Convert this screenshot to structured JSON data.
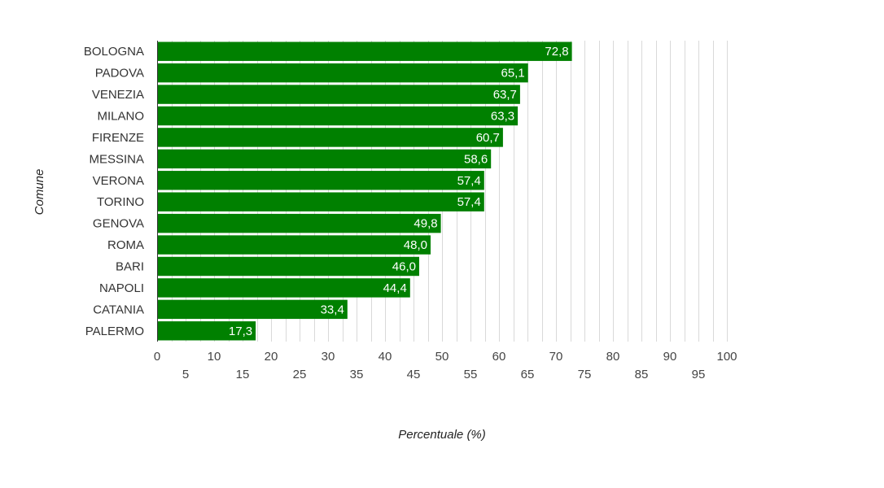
{
  "chart_data": {
    "type": "bar",
    "orientation": "horizontal",
    "categories": [
      "BOLOGNA",
      "PADOVA",
      "VENEZIA",
      "MILANO",
      "FIRENZE",
      "MESSINA",
      "VERONA",
      "TORINO",
      "GENOVA",
      "ROMA",
      "BARI",
      "NAPOLI",
      "CATANIA",
      "PALERMO"
    ],
    "values": [
      72.8,
      65.1,
      63.7,
      63.3,
      60.7,
      58.6,
      57.4,
      57.4,
      49.8,
      48.0,
      46.0,
      44.4,
      33.4,
      17.3
    ],
    "value_labels": [
      "72,8",
      "65,1",
      "63,7",
      "63,3",
      "60,7",
      "58,6",
      "57,4",
      "57,4",
      "49,8",
      "48,0",
      "46,0",
      "44,4",
      "33,4",
      "17,3"
    ],
    "xlabel": "Percentuale (%)",
    "ylabel": "Comune",
    "xlim": [
      0,
      100
    ],
    "x_ticks": [
      0,
      5,
      10,
      15,
      20,
      25,
      30,
      35,
      40,
      45,
      50,
      55,
      60,
      65,
      70,
      75,
      80,
      85,
      90,
      95,
      100
    ],
    "x_tick_labels": [
      "0",
      "5",
      "10",
      "15",
      "20",
      "25",
      "30",
      "35",
      "40",
      "45",
      "50",
      "55",
      "60",
      "65",
      "70",
      "75",
      "80",
      "85",
      "90",
      "95",
      "100"
    ],
    "grid": "vertical",
    "bar_color": "#008000",
    "grid_color": "#d9d9d9"
  }
}
